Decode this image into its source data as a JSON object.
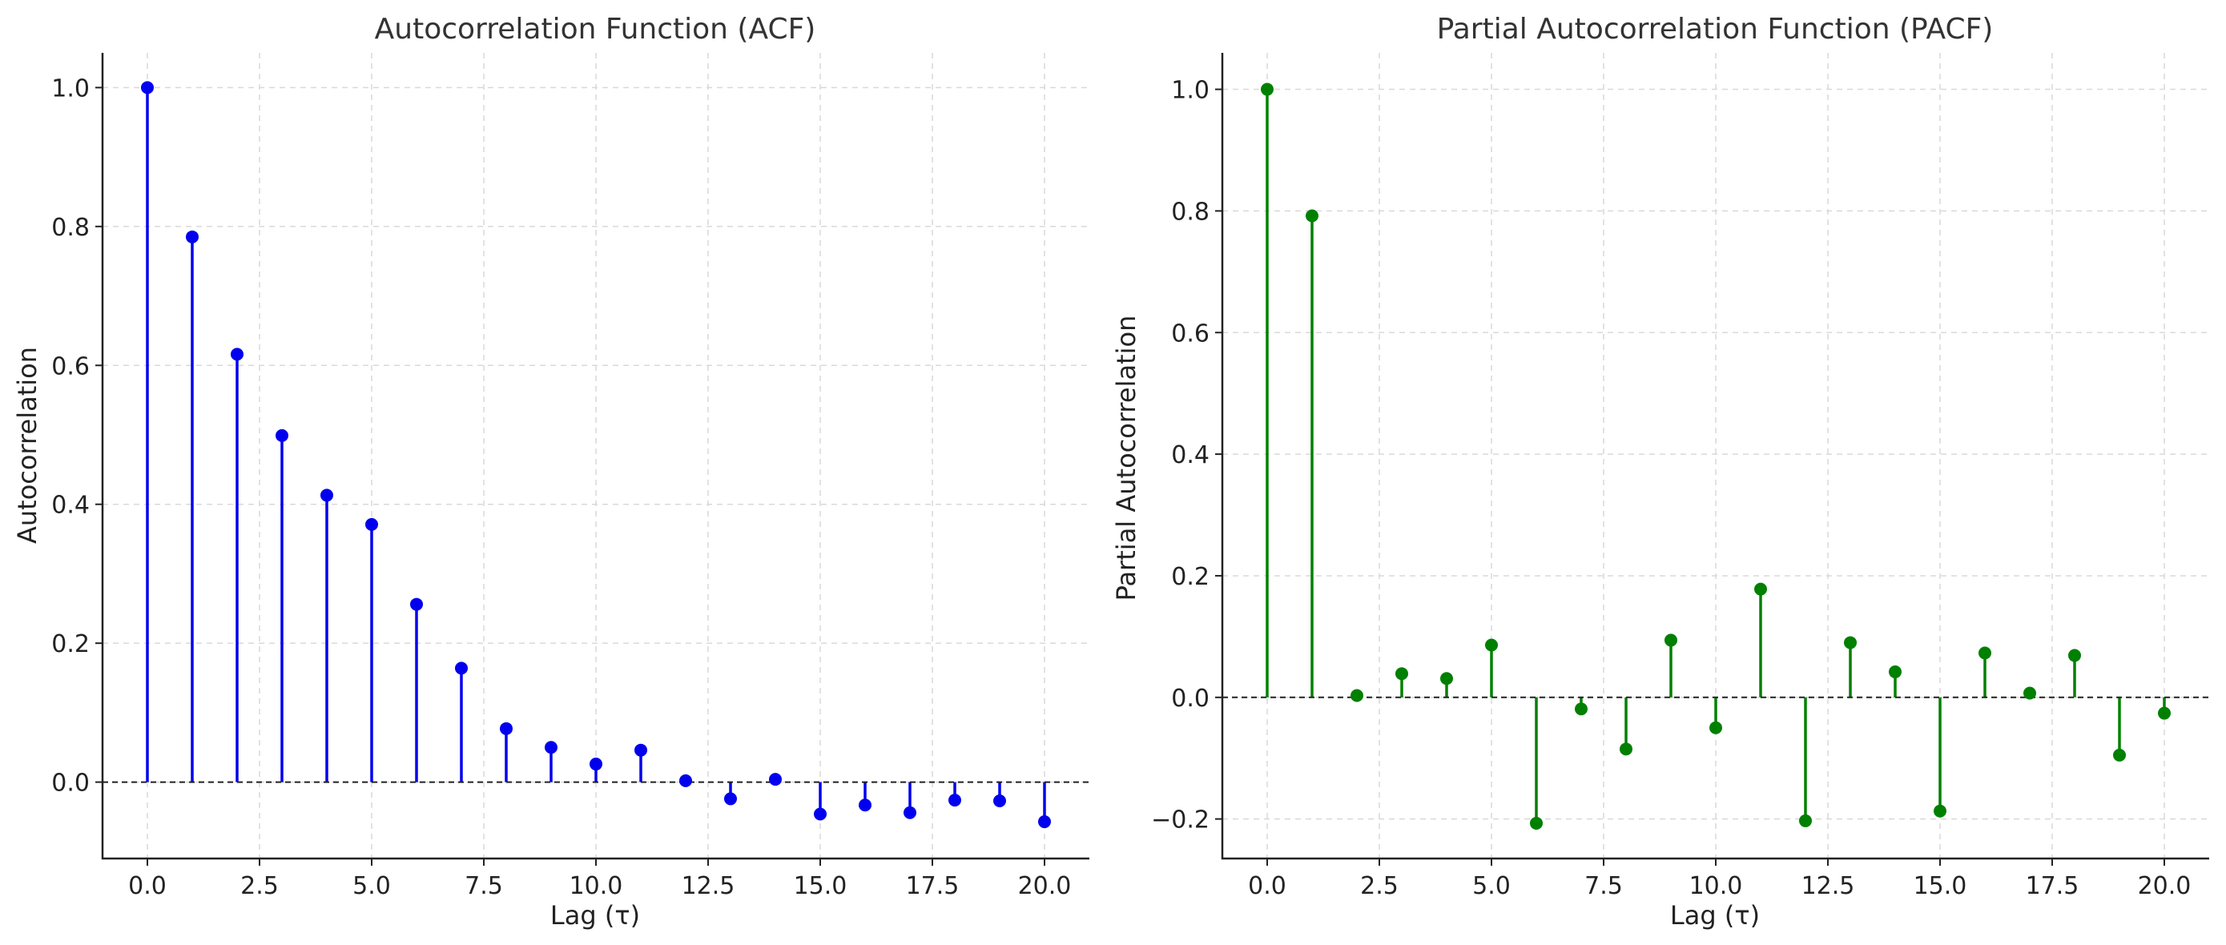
{
  "chart_data": [
    {
      "type": "stem",
      "title": "Autocorrelation Function (ACF)",
      "xlabel": "Lag (τ)",
      "ylabel": "Autocorrelation",
      "color": "#0000ee",
      "xlim": [
        -1,
        21
      ],
      "ylim": [
        -0.11,
        1.05
      ],
      "xticks": [
        0.0,
        2.5,
        5.0,
        7.5,
        10.0,
        12.5,
        15.0,
        17.5,
        20.0
      ],
      "xtick_labels": [
        "0.0",
        "2.5",
        "5.0",
        "7.5",
        "10.0",
        "12.5",
        "15.0",
        "17.5",
        "20.0"
      ],
      "yticks": [
        0.0,
        0.2,
        0.4,
        0.6,
        0.8,
        1.0
      ],
      "ytick_labels": [
        "0.0",
        "0.2",
        "0.4",
        "0.6",
        "0.8",
        "1.0"
      ],
      "grid": true,
      "zero_line": true,
      "x": [
        0,
        1,
        2,
        3,
        4,
        5,
        6,
        7,
        8,
        9,
        10,
        11,
        12,
        13,
        14,
        15,
        16,
        17,
        18,
        19,
        20
      ],
      "values": [
        1.0,
        0.785,
        0.616,
        0.499,
        0.413,
        0.371,
        0.256,
        0.164,
        0.077,
        0.05,
        0.026,
        0.046,
        0.002,
        -0.024,
        0.004,
        -0.046,
        -0.033,
        -0.044,
        -0.026,
        -0.027,
        -0.057
      ]
    },
    {
      "type": "stem",
      "title": "Partial Autocorrelation Function (PACF)",
      "xlabel": "Lag (τ)",
      "ylabel": "Partial Autocorrelation",
      "color": "#008000",
      "xlim": [
        -1,
        21
      ],
      "ylim": [
        -0.265,
        1.06
      ],
      "xticks": [
        0.0,
        2.5,
        5.0,
        7.5,
        10.0,
        12.5,
        15.0,
        17.5,
        20.0
      ],
      "xtick_labels": [
        "0.0",
        "2.5",
        "5.0",
        "7.5",
        "10.0",
        "12.5",
        "15.0",
        "17.5",
        "20.0"
      ],
      "yticks": [
        -0.2,
        0.0,
        0.2,
        0.4,
        0.6,
        0.8,
        1.0
      ],
      "ytick_labels": [
        "−0.2",
        "0.0",
        "0.2",
        "0.4",
        "0.6",
        "0.8",
        "1.0"
      ],
      "grid": true,
      "zero_line": true,
      "x": [
        0,
        1,
        2,
        3,
        4,
        5,
        6,
        7,
        8,
        9,
        10,
        11,
        12,
        13,
        14,
        15,
        16,
        17,
        18,
        19,
        20
      ],
      "values": [
        1.0,
        0.792,
        0.003,
        0.039,
        0.031,
        0.086,
        -0.207,
        -0.019,
        -0.085,
        0.094,
        -0.05,
        0.178,
        -0.203,
        0.09,
        0.042,
        -0.187,
        0.073,
        0.007,
        0.069,
        -0.095,
        -0.026
      ]
    }
  ]
}
